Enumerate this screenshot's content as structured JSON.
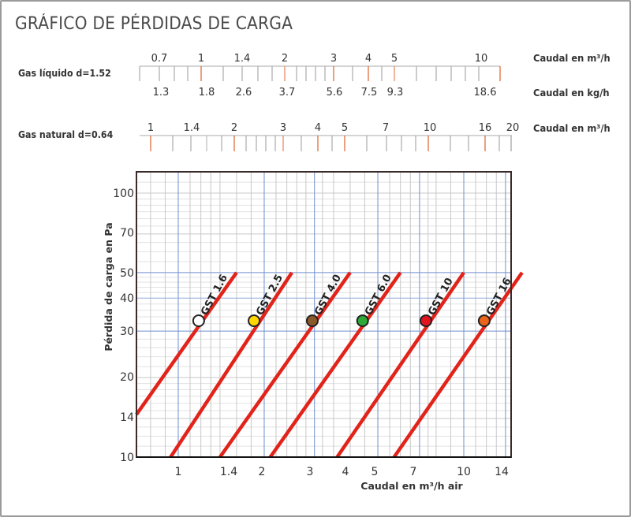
{
  "title": "GRÁFICO DE PÉRDIDAS DE CARGA",
  "scales": {
    "lpg": {
      "label": "Gas líquido d=1.52",
      "top_ticks": [
        "0.7",
        "1",
        "1.4",
        "2",
        "3",
        "4",
        "5",
        "10"
      ],
      "bottom_ticks": [
        "1.3",
        "1.8",
        "2.6",
        "3.7",
        "5.6",
        "7.5",
        "9.3",
        "18.6"
      ],
      "top_unit": "Caudal en m³/h",
      "bottom_unit": "Caudal en kg/h"
    },
    "natural_gas": {
      "label": "Gas natural d=0.64",
      "ticks": [
        "1",
        "1.4",
        "2",
        "3",
        "4",
        "5",
        "7",
        "10",
        "16",
        "20"
      ],
      "unit": "Caudal en m³/h"
    }
  },
  "colors": {
    "grid_minor": "#c8c8c8",
    "grid_major": "#6f8fd0",
    "line": "#e2231a",
    "tick_highlight": "#e0602a",
    "axis": "#3a2a2a"
  },
  "chart_data": {
    "type": "line",
    "title": "GRÁFICO DE PÉRDIDAS DE CARGA",
    "xlabel": "Caudal en m³/h air",
    "ylabel": "Pérdida de carga en Pa",
    "xscale": "log",
    "yscale": "log",
    "xlim": [
      0.7,
      16
    ],
    "ylim": [
      10,
      125
    ],
    "x_ticks": [
      "1",
      "1.4",
      "2",
      "3",
      "4",
      "5",
      "7",
      "10",
      "14"
    ],
    "y_ticks": [
      "10",
      "14",
      "20",
      "30",
      "40",
      "50",
      "70",
      "100"
    ],
    "grid": true,
    "series": [
      {
        "name": "GST 1.6",
        "marker_color": "#ffffff",
        "points": [
          [
            0.7,
            14.5
          ],
          [
            1.6,
            50
          ]
        ]
      },
      {
        "name": "GST 2.5",
        "marker_color": "#ffd700",
        "points": [
          [
            0.94,
            10
          ],
          [
            2.5,
            50
          ]
        ]
      },
      {
        "name": "GST 4.0",
        "marker_color": "#8b5a2b",
        "points": [
          [
            1.4,
            10
          ],
          [
            4.0,
            50
          ]
        ]
      },
      {
        "name": "GST 6.0",
        "marker_color": "#2ea836",
        "points": [
          [
            2.1,
            10
          ],
          [
            6.0,
            50
          ]
        ]
      },
      {
        "name": "GST 10",
        "marker_color": "#e2141e",
        "points": [
          [
            3.6,
            10
          ],
          [
            10,
            50
          ]
        ]
      },
      {
        "name": "GST 16",
        "marker_color": "#e8651a",
        "points": [
          [
            5.7,
            10
          ],
          [
            16,
            50
          ]
        ]
      }
    ]
  }
}
